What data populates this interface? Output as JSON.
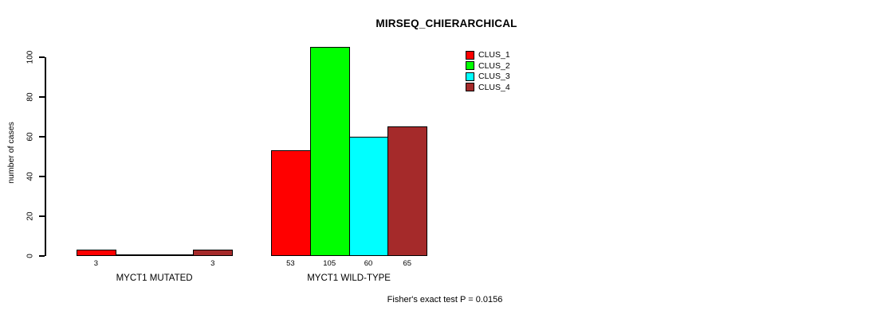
{
  "header": {
    "title": "MIRSEQ_CHIERARCHICAL"
  },
  "y_axis": {
    "label": "number of cases",
    "tick_values": [
      0,
      20,
      40,
      60,
      80,
      100
    ]
  },
  "legend": {
    "items": [
      {
        "label": "CLUS_1",
        "color": "#FF0000"
      },
      {
        "label": "CLUS_2",
        "color": "#00FF00"
      },
      {
        "label": "CLUS_3",
        "color": "#00FFFF"
      },
      {
        "label": "CLUS_4",
        "color": "#A52A2A"
      }
    ]
  },
  "footer": {
    "annotation": "Fisher's exact test P = 0.0156"
  },
  "chart_data": {
    "type": "bar",
    "title": "MIRSEQ_CHIERARCHICAL",
    "xlabel": "",
    "ylabel": "number of cases",
    "ylim": [
      0,
      100
    ],
    "grid": false,
    "legend_position": "top-right",
    "categories": [
      "MYCT1 MUTATED",
      "MYCT1 WILD-TYPE"
    ],
    "series": [
      {
        "name": "CLUS_1",
        "color": "#FF0000",
        "values": [
          3,
          53
        ]
      },
      {
        "name": "CLUS_2",
        "color": "#00FF00",
        "values": [
          0,
          105
        ]
      },
      {
        "name": "CLUS_3",
        "color": "#00FFFF",
        "values": [
          0,
          60
        ]
      },
      {
        "name": "CLUS_4",
        "color": "#A52A2A",
        "values": [
          3,
          65
        ]
      }
    ],
    "bar_value_labels": [
      [
        "3",
        "",
        "",
        "3"
      ],
      [
        "53",
        "105",
        "60",
        "65"
      ]
    ],
    "annotation": "Fisher's exact test P = 0.0156"
  }
}
